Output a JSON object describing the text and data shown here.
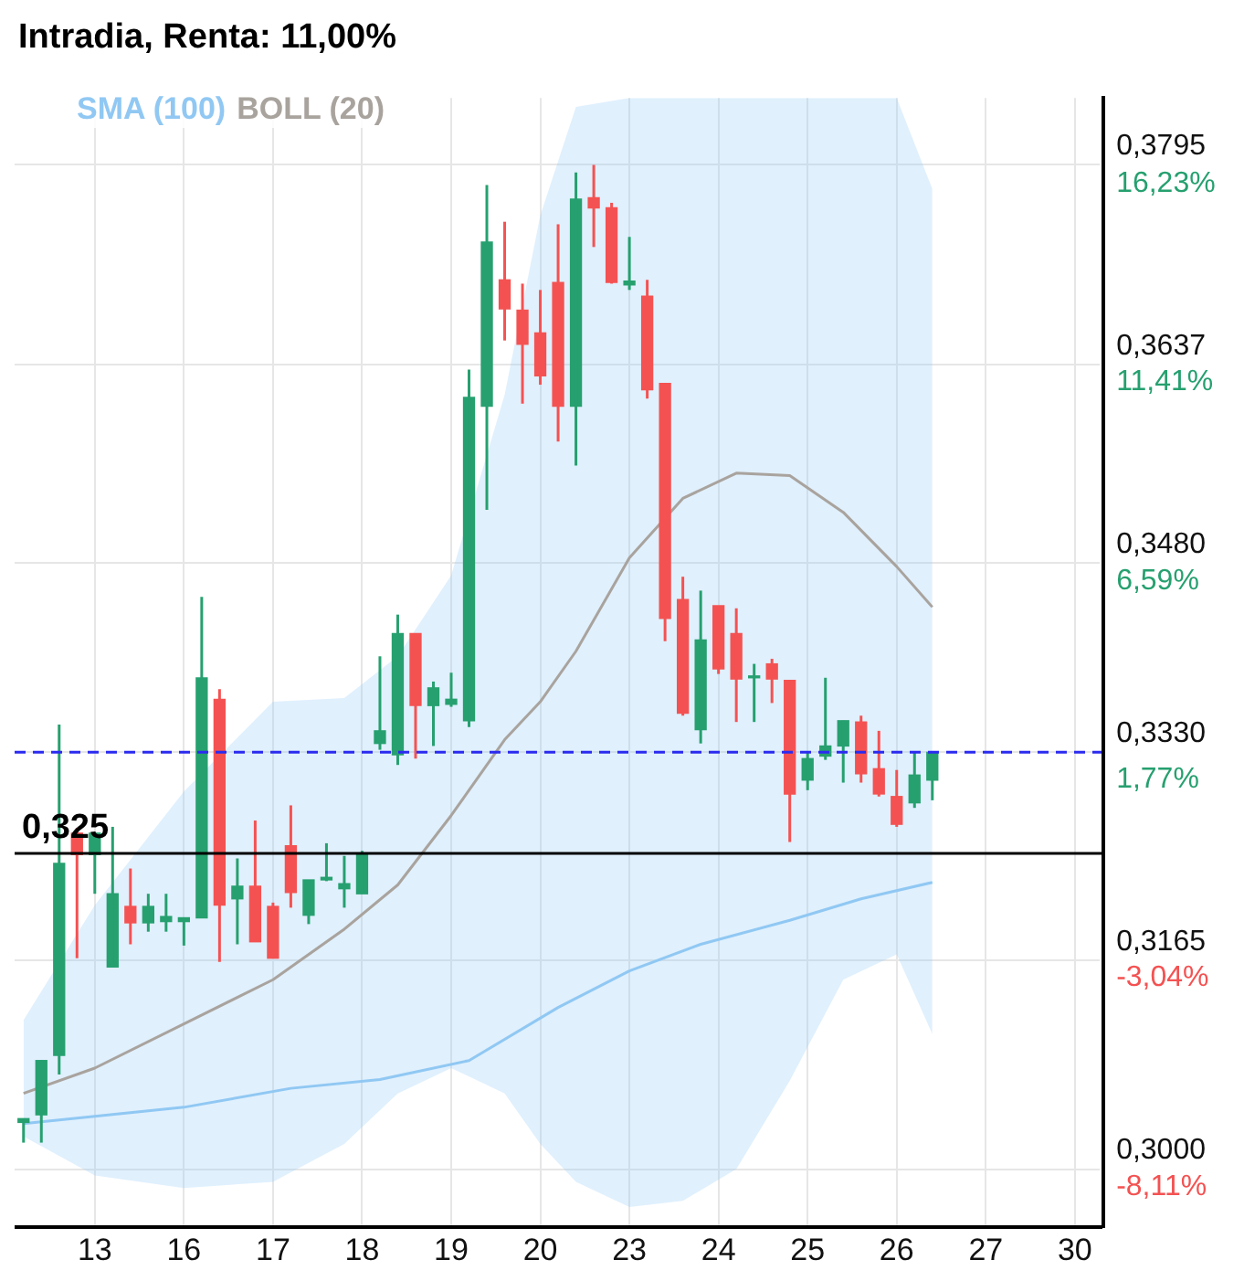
{
  "chart_data": {
    "type": "candlestick",
    "title": "Intradia, Renta: 11,00%",
    "categories": [
      null,
      null,
      null,
      null,
      "13",
      null,
      null,
      null,
      null,
      "16",
      null,
      null,
      null,
      null,
      "17",
      null,
      null,
      null,
      null,
      "18",
      null,
      null,
      null,
      null,
      "19",
      null,
      null,
      null,
      null,
      "20",
      null,
      null,
      null,
      null,
      "23",
      null,
      null,
      null,
      null,
      "24",
      null,
      null,
      null,
      null,
      "25",
      null,
      null,
      null,
      null,
      "26",
      null,
      null,
      null,
      null,
      "27",
      null,
      null,
      null,
      null,
      "30",
      null
    ],
    "ohlc": [
      [
        0.3037,
        0.304,
        0.3021,
        0.304
      ],
      [
        0.3043,
        0.3086,
        0.3021,
        0.3086
      ],
      [
        0.309,
        0.3352,
        0.3075,
        0.3242
      ],
      [
        0.3266,
        0.327,
        0.3167,
        0.3249
      ],
      [
        0.3249,
        0.3266,
        0.3218,
        0.3266
      ],
      [
        0.316,
        0.3271,
        0.316,
        0.3218
      ],
      [
        0.3208,
        0.3238,
        0.3178,
        0.3195
      ],
      [
        0.3195,
        0.3218,
        0.3188,
        0.3208
      ],
      [
        0.3196,
        0.3218,
        0.3188,
        0.32
      ],
      [
        0.3196,
        0.3199,
        0.3177,
        0.3199
      ],
      [
        0.3199,
        0.3453,
        0.3199,
        0.3389
      ],
      [
        0.3372,
        0.338,
        0.3164,
        0.3209
      ],
      [
        0.3214,
        0.3246,
        0.3178,
        0.3224
      ],
      [
        0.3224,
        0.3276,
        0.318,
        0.318
      ],
      [
        0.3208,
        0.3211,
        0.3167,
        0.3167
      ],
      [
        0.3256,
        0.3288,
        0.3207,
        0.3219
      ],
      [
        0.3201,
        0.3229,
        0.3194,
        0.3229
      ],
      [
        0.3229,
        0.3258,
        0.3228,
        0.3231
      ],
      [
        0.3222,
        0.3248,
        0.3207,
        0.3226
      ],
      [
        0.3218,
        0.3252,
        0.3218,
        0.3249
      ],
      [
        0.3337,
        0.3406,
        0.3332,
        0.3347
      ],
      [
        0.3328,
        0.3439,
        0.332,
        0.3424
      ],
      [
        0.3424,
        0.3424,
        0.3325,
        0.3367
      ],
      [
        0.3367,
        0.3386,
        0.3335,
        0.3381
      ],
      [
        0.3368,
        0.3393,
        0.3366,
        0.3372
      ],
      [
        0.3355,
        0.3633,
        0.335,
        0.3611
      ],
      [
        0.3604,
        0.3779,
        0.3522,
        0.3734
      ],
      [
        0.3704,
        0.375,
        0.3656,
        0.3681
      ],
      [
        0.368,
        0.3701,
        0.3606,
        0.3653
      ],
      [
        0.3662,
        0.3696,
        0.3621,
        0.3628
      ],
      [
        0.3702,
        0.3748,
        0.3576,
        0.3604
      ],
      [
        0.3604,
        0.3789,
        0.3557,
        0.3768
      ],
      [
        0.3769,
        0.3795,
        0.373,
        0.3761
      ],
      [
        0.3761,
        0.3765,
        0.3701,
        0.3702
      ],
      [
        0.37,
        0.3738,
        0.3696,
        0.3703
      ],
      [
        0.3691,
        0.3704,
        0.361,
        0.3617
      ],
      [
        0.3622,
        0.3622,
        0.3418,
        0.3436
      ],
      [
        0.3451,
        0.3469,
        0.3359,
        0.3361
      ],
      [
        0.3348,
        0.3458,
        0.3337,
        0.3419
      ],
      [
        0.3446,
        0.3446,
        0.3392,
        0.3396
      ],
      [
        0.3424,
        0.3444,
        0.3354,
        0.3388
      ],
      [
        0.3389,
        0.34,
        0.3354,
        0.339
      ],
      [
        0.34,
        0.3404,
        0.3369,
        0.3388
      ],
      [
        0.3387,
        0.3387,
        0.3259,
        0.3297
      ],
      [
        0.3308,
        0.333,
        0.33,
        0.3325
      ],
      [
        0.3327,
        0.3389,
        0.3324,
        0.3335
      ],
      [
        0.3335,
        0.3355,
        0.3306,
        0.3355
      ],
      [
        0.3354,
        0.3359,
        0.3306,
        0.3313
      ],
      [
        0.3317,
        0.3347,
        0.3295,
        0.3297
      ],
      [
        0.3295,
        0.3316,
        0.3271,
        0.3273
      ],
      [
        0.329,
        0.333,
        0.3286,
        0.3312
      ],
      [
        0.3308,
        0.333,
        0.3292,
        0.333
      ],
      null,
      null,
      null,
      null,
      null,
      null,
      null,
      null,
      null
    ],
    "colors": [
      "#26a06f",
      "#26a06f",
      "#26a06f",
      "#f45252",
      "#26a06f",
      "#26a06f",
      "#f45252",
      "#26a06f",
      "#26a06f",
      "#26a06f",
      "#26a06f",
      "#f45252",
      "#26a06f",
      "#f45252",
      "#f45252",
      "#f45252",
      "#26a06f",
      "#26a06f",
      "#26a06f",
      "#26a06f",
      "#26a06f",
      "#26a06f",
      "#f45252",
      "#26a06f",
      "#26a06f",
      "#26a06f",
      "#26a06f",
      "#f45252",
      "#f45252",
      "#f45252",
      "#f45252",
      "#26a06f",
      "#f45252",
      "#f45252",
      "#26a06f",
      "#f45252",
      "#f45252",
      "#f45252",
      "#26a06f",
      "#f45252",
      "#f45252",
      "#26a06f",
      "#f45252",
      "#f45252",
      "#26a06f",
      "#26a06f",
      "#26a06f",
      "#f45252",
      "#f45252",
      "#f45252",
      "#26a06f",
      "#26a06f",
      null,
      null,
      null,
      null,
      null,
      null,
      null,
      null,
      null
    ],
    "series": [
      {
        "name": "SMA (100)",
        "type": "line",
        "color": "#90c8f3",
        "values": [
          0.3036,
          null,
          null,
          null,
          null,
          null,
          null,
          null,
          null,
          0.3049,
          null,
          null,
          null,
          null,
          null,
          0.3064,
          null,
          null,
          null,
          null,
          0.3071,
          null,
          null,
          null,
          null,
          0.3086,
          null,
          null,
          null,
          null,
          0.3128,
          null,
          null,
          null,
          0.3157,
          null,
          null,
          null,
          0.3178,
          null,
          null,
          null,
          null,
          0.3197,
          null,
          null,
          null,
          0.3214,
          null,
          null,
          null,
          0.3227,
          null,
          null,
          null,
          null,
          null,
          null,
          null,
          null,
          null
        ]
      },
      {
        "name": "BOLL (20)",
        "type": "line",
        "color": "#a9a39e",
        "values": [
          0.306,
          null,
          null,
          null,
          0.308,
          null,
          null,
          null,
          null,
          0.3115,
          null,
          null,
          null,
          null,
          0.315,
          null,
          null,
          null,
          0.319,
          null,
          null,
          0.3225,
          null,
          null,
          0.328,
          null,
          null,
          0.334,
          null,
          0.337,
          null,
          0.341,
          null,
          null,
          0.3484,
          null,
          null,
          0.3531,
          null,
          null,
          0.3551,
          null,
          null,
          0.3549,
          null,
          null,
          0.352,
          null,
          null,
          0.3477,
          null,
          0.3445,
          null,
          null,
          null,
          null,
          null,
          null,
          null,
          null,
          null
        ],
        "upper": [
          0.3118,
          null,
          null,
          null,
          0.3209,
          null,
          null,
          null,
          null,
          0.3299,
          null,
          null,
          null,
          null,
          0.337,
          null,
          null,
          null,
          0.3373,
          null,
          null,
          0.3406,
          null,
          null,
          0.347,
          null,
          null,
          0.3613,
          null,
          0.3755,
          null,
          0.3841,
          null,
          null,
          0.3848,
          null,
          null,
          0.3848,
          null,
          null,
          0.3848,
          null,
          null,
          0.3848,
          null,
          null,
          0.3848,
          null,
          null,
          0.3848,
          null,
          0.3776,
          null,
          null,
          null,
          null,
          null,
          null,
          null,
          null,
          null
        ],
        "lower": [
          0.3026,
          null,
          null,
          null,
          0.2995,
          null,
          null,
          null,
          null,
          0.2985,
          null,
          null,
          null,
          null,
          0.299,
          null,
          null,
          null,
          0.302,
          null,
          null,
          0.306,
          null,
          null,
          0.308,
          null,
          null,
          0.306,
          null,
          0.302,
          null,
          0.299,
          null,
          null,
          0.297,
          null,
          null,
          0.2975,
          null,
          null,
          0.3,
          null,
          null,
          0.307,
          null,
          null,
          0.315,
          null,
          null,
          0.317,
          null,
          0.3107,
          null,
          null,
          null,
          null,
          null,
          null,
          null,
          null,
          null
        ]
      }
    ],
    "ylim": [
      0.2954,
      0.3848
    ],
    "yticks": [
      {
        "value": 0.3,
        "label": "0,3000"
      },
      {
        "value": 0.3165,
        "label": "0,3165"
      },
      {
        "value": 0.333,
        "label": "0,3330"
      },
      {
        "value": 0.348,
        "label": "0,3480"
      },
      {
        "value": 0.3637,
        "label": "0,3637"
      },
      {
        "value": 0.3795,
        "label": "0,3795"
      }
    ],
    "y2lim": [
      -9.53,
      17.86
    ],
    "y2ticks": [
      {
        "value": -8.11,
        "label": "-8,11%"
      },
      {
        "value": -3.04,
        "label": "-3,04%"
      },
      {
        "value": 1.77,
        "label": "1,77%"
      },
      {
        "value": 6.59,
        "label": "6,59%"
      },
      {
        "value": 11.41,
        "label": "11,41%"
      },
      {
        "value": 16.23,
        "label": "16,23%"
      }
    ],
    "ref_lines": [
      {
        "axis": "y",
        "value": 0.333,
        "color": "#2b2bf0",
        "line_style": "dashed"
      },
      {
        "axis": "y",
        "value": 0.325,
        "label": "0,325",
        "color": "#000000",
        "line_style": "solid"
      }
    ],
    "grid": true,
    "legend": "top left",
    "marker": "none"
  }
}
